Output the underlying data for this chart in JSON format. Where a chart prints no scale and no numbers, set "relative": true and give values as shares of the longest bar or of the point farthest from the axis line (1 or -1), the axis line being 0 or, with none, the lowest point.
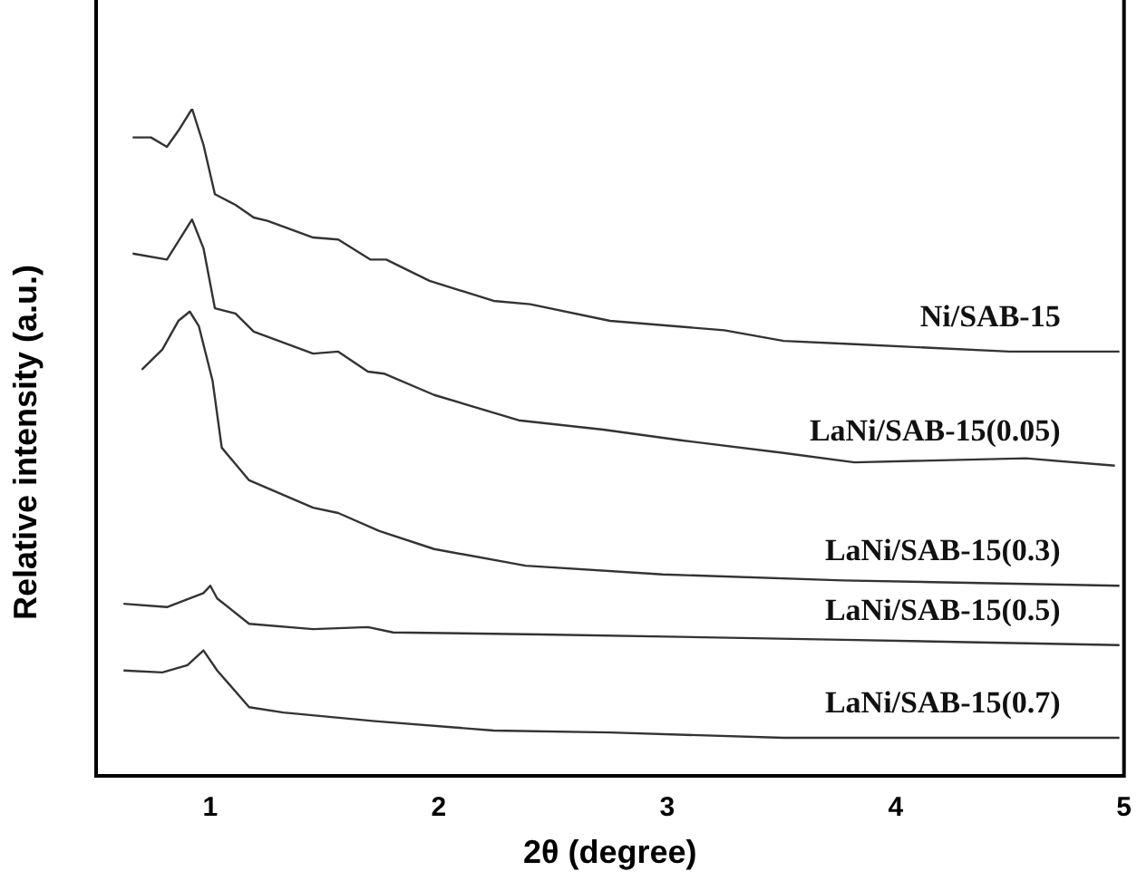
{
  "chart_data": {
    "type": "line",
    "xlabel": "2θ (degree)",
    "ylabel": "Relative intensity (a.u.)",
    "relative": true,
    "xlim": [
      0.5,
      5
    ],
    "xticks": [
      1,
      2,
      3,
      4,
      5
    ],
    "grid": false,
    "legend": false,
    "marker": "none",
    "line_style": "solid",
    "series": [
      {
        "name": "Ni/SAB-15",
        "color": "#333333",
        "x": [
          0.66,
          0.74,
          0.81,
          0.86,
          0.92,
          0.97,
          1.02,
          1.11,
          1.19,
          1.25,
          1.45,
          1.56,
          1.7,
          1.77,
          1.96,
          2.24,
          2.4,
          2.75,
          3.25,
          3.51,
          3.82,
          4.5,
          4.98
        ],
        "values": [
          0.957,
          0.957,
          0.943,
          0.967,
          1.0,
          0.946,
          0.872,
          0.856,
          0.837,
          0.832,
          0.807,
          0.804,
          0.774,
          0.774,
          0.742,
          0.712,
          0.707,
          0.682,
          0.668,
          0.652,
          0.647,
          0.636,
          0.636
        ]
      },
      {
        "name": "LaNi/SAB-15(0.05)",
        "color": "#333333",
        "x": [
          0.66,
          0.81,
          0.92,
          0.97,
          1.02,
          1.11,
          1.19,
          1.45,
          1.56,
          1.69,
          1.76,
          1.98,
          2.35,
          2.72,
          3.06,
          3.51,
          3.82,
          4.57,
          4.96
        ],
        "values": [
          0.783,
          0.774,
          0.834,
          0.791,
          0.701,
          0.693,
          0.666,
          0.633,
          0.636,
          0.606,
          0.603,
          0.571,
          0.533,
          0.519,
          0.503,
          0.484,
          0.47,
          0.476,
          0.465
        ]
      },
      {
        "name": "LaNi/SAB-15(0.3)",
        "color": "#333333",
        "x": [
          0.7,
          0.79,
          0.86,
          0.91,
          0.95,
          1.01,
          1.05,
          1.17,
          1.45,
          1.56,
          1.74,
          1.98,
          2.38,
          2.98,
          3.77,
          4.98
        ],
        "values": [
          0.609,
          0.639,
          0.682,
          0.696,
          0.674,
          0.592,
          0.492,
          0.443,
          0.402,
          0.394,
          0.367,
          0.34,
          0.315,
          0.302,
          0.293,
          0.285
        ]
      },
      {
        "name": "LaNi/SAB-15(0.5)",
        "color": "#333333",
        "x": [
          0.62,
          0.81,
          0.97,
          1.0,
          1.03,
          1.17,
          1.45,
          1.69,
          1.8,
          2.45,
          3.77,
          4.98
        ],
        "values": [
          0.258,
          0.253,
          0.274,
          0.285,
          0.266,
          0.228,
          0.22,
          0.223,
          0.215,
          0.212,
          0.204,
          0.196
        ]
      },
      {
        "name": "LaNi/SAB-15(0.7)",
        "color": "#333333",
        "x": [
          0.62,
          0.79,
          0.9,
          0.97,
          1.03,
          1.17,
          1.32,
          1.72,
          2.24,
          2.75,
          3.51,
          4.98
        ],
        "values": [
          0.158,
          0.155,
          0.166,
          0.188,
          0.158,
          0.103,
          0.095,
          0.082,
          0.068,
          0.065,
          0.057,
          0.057
        ]
      }
    ]
  }
}
